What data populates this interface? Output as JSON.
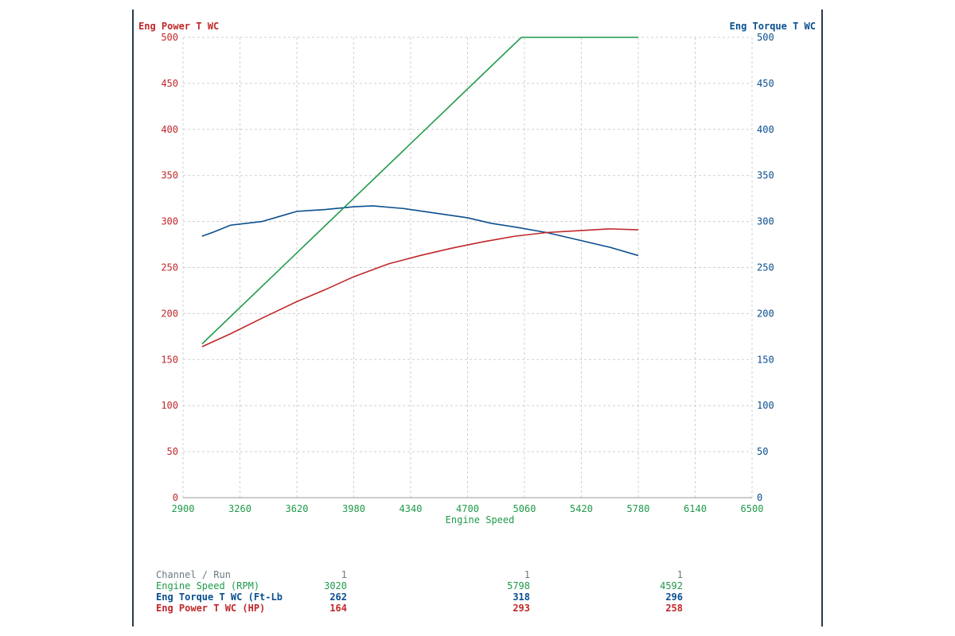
{
  "chart_data": {
    "type": "line",
    "title": "",
    "xlabel": "Engine Speed",
    "ylabel_left": "Eng Power T WC",
    "ylabel_right": "Eng Torque T WC",
    "xlim": [
      2900,
      6500
    ],
    "ylim_left": [
      0,
      500
    ],
    "ylim_right": [
      0,
      500
    ],
    "x_ticks": [
      2900,
      3260,
      3620,
      3980,
      4340,
      4700,
      5060,
      5420,
      5780,
      6140,
      6500
    ],
    "y_ticks": [
      0,
      50,
      100,
      150,
      200,
      250,
      300,
      350,
      400,
      450,
      500
    ],
    "grid": true,
    "colors": {
      "power": "#c0282a",
      "torque": "#0b4f8f",
      "speed": "#1f9a4a",
      "grid": "#d0d0d0"
    },
    "series": [
      {
        "name": "Eng Torque T WC",
        "color_key": "torque",
        "axis": "right",
        "x": [
          3020,
          3100,
          3200,
          3300,
          3400,
          3500,
          3620,
          3800,
          3980,
          4100,
          4300,
          4500,
          4700,
          4850,
          5000,
          5200,
          5400,
          5600,
          5780
        ],
        "y": [
          284,
          289,
          296,
          298,
          300,
          305,
          311,
          313,
          316,
          317,
          314,
          309,
          304,
          298,
          294,
          288,
          280,
          272,
          263
        ]
      },
      {
        "name": "Eng Power T WC",
        "color_key": "power",
        "axis": "left",
        "x": [
          3020,
          3200,
          3400,
          3620,
          3800,
          3980,
          4200,
          4400,
          4600,
          4800,
          5000,
          5200,
          5400,
          5600,
          5780
        ],
        "y": [
          164,
          178,
          195,
          213,
          226,
          240,
          254,
          263,
          271,
          278,
          284,
          288,
          290,
          292,
          291
        ]
      },
      {
        "name": "Engine Speed",
        "color_key": "speed",
        "axis": "left",
        "x": [
          3020,
          5040,
          5780
        ],
        "y": [
          167,
          500,
          500
        ]
      }
    ]
  },
  "table": {
    "rows": [
      {
        "label": "Channel / Run",
        "values": [
          "1",
          "1",
          "1"
        ],
        "color": "#6a7a80"
      },
      {
        "label": "Engine Speed (RPM)",
        "values": [
          "3020",
          "5798",
          "4592"
        ],
        "color": "#1f9a4a"
      },
      {
        "label": "Eng Torque T WC (Ft-Lb",
        "values": [
          "262",
          "318",
          "296"
        ],
        "color": "#0b4f8f"
      },
      {
        "label": "Eng Power T WC (HP)",
        "values": [
          "164",
          "293",
          "258"
        ],
        "color": "#c0282a"
      }
    ]
  }
}
